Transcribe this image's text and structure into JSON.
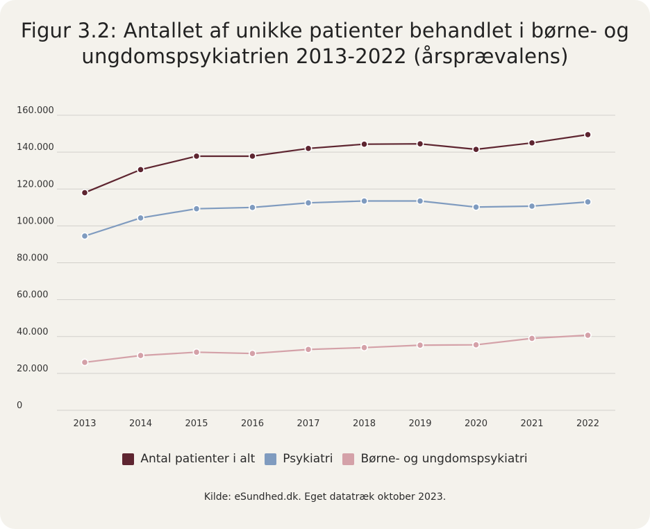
{
  "title_line1": "Figur 3.2: Antallet af unikke patienter behandlet i børne- og",
  "title_line2": "ungdomspsykiatrien 2013-2022 (årsprævalens)",
  "source": "Kilde: eSundhed.dk. Eget datatræk oktober 2023.",
  "chart_data": {
    "type": "line",
    "title": "Figur 3.2: Antallet af unikke patienter behandlet i børne- og ungdomspsykiatrien 2013-2022 (årsprævalens)",
    "xlabel": "",
    "ylabel": "",
    "x": [
      "2013",
      "2014",
      "2015",
      "2016",
      "2017",
      "2018",
      "2019",
      "2020",
      "2021",
      "2022"
    ],
    "ylim": [
      0,
      160000
    ],
    "yticks": [
      0,
      20000,
      40000,
      60000,
      80000,
      100000,
      120000,
      140000,
      160000
    ],
    "ytick_labels": [
      "0",
      "20.000",
      "40.000",
      "60.000",
      "80.000",
      "100.000",
      "120.000",
      "140.000",
      "160.000"
    ],
    "grid": "horizontal",
    "legend_position": "bottom",
    "series": [
      {
        "name": "Antal patienter i alt",
        "color": "#5e2530",
        "values": [
          118000,
          130500,
          137800,
          137800,
          142000,
          144300,
          144500,
          141500,
          145000,
          149500
        ]
      },
      {
        "name": "Psykiatri",
        "color": "#7f9bbf",
        "values": [
          94500,
          104300,
          109300,
          110000,
          112500,
          113500,
          113500,
          110200,
          110700,
          113000
        ]
      },
      {
        "name": "Børne- og ungdomspsykiatri",
        "color": "#d4a1a8",
        "values": [
          26000,
          29700,
          31500,
          30800,
          33000,
          34000,
          35300,
          35500,
          39000,
          40700
        ]
      }
    ]
  }
}
